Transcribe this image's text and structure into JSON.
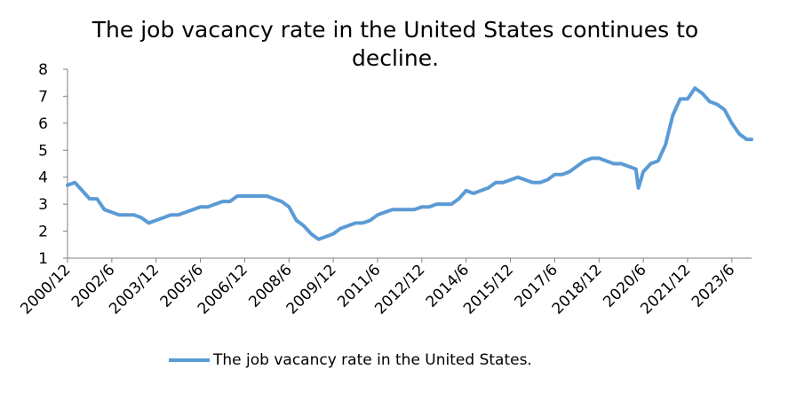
{
  "chart_data": {
    "type": "line",
    "title": "The job vacancy rate in the United States continues to decline.",
    "xlabel": "",
    "ylabel": "",
    "ylim": [
      1,
      8
    ],
    "y_ticks": [
      "1",
      "2",
      "3",
      "4",
      "5",
      "6",
      "7",
      "8"
    ],
    "x_tick_labels": [
      "2000/12",
      "2002/6",
      "2003/12",
      "2005/6",
      "2006/12",
      "2008/6",
      "2009/12",
      "2011/6",
      "2012/12",
      "2014/6",
      "2015/12",
      "2017/6",
      "2018/12",
      "2020/6",
      "2021/12",
      "2023/6"
    ],
    "x_range": [
      "2000/12",
      "2024/2"
    ],
    "grid": false,
    "legend_position": "bottom",
    "series": [
      {
        "name": "The job vacancy rate in the United States.",
        "color": "#5B9BD5",
        "x": [
          "2000/12",
          "2001/3",
          "2001/6",
          "2001/9",
          "2001/12",
          "2002/3",
          "2002/6",
          "2002/9",
          "2002/12",
          "2003/3",
          "2003/6",
          "2003/9",
          "2003/12",
          "2004/3",
          "2004/6",
          "2004/9",
          "2004/12",
          "2005/3",
          "2005/6",
          "2005/9",
          "2005/12",
          "2006/3",
          "2006/6",
          "2006/9",
          "2006/12",
          "2007/3",
          "2007/6",
          "2007/9",
          "2007/12",
          "2008/3",
          "2008/6",
          "2008/9",
          "2008/12",
          "2009/3",
          "2009/6",
          "2009/9",
          "2009/12",
          "2010/3",
          "2010/6",
          "2010/9",
          "2010/12",
          "2011/3",
          "2011/6",
          "2011/9",
          "2011/12",
          "2012/3",
          "2012/6",
          "2012/9",
          "2012/12",
          "2013/3",
          "2013/6",
          "2013/9",
          "2013/12",
          "2014/3",
          "2014/6",
          "2014/9",
          "2014/12",
          "2015/3",
          "2015/6",
          "2015/9",
          "2015/12",
          "2016/3",
          "2016/6",
          "2016/9",
          "2016/12",
          "2017/3",
          "2017/6",
          "2017/9",
          "2017/12",
          "2018/3",
          "2018/6",
          "2018/9",
          "2018/12",
          "2019/3",
          "2019/6",
          "2019/9",
          "2019/12",
          "2020/3",
          "2020/4",
          "2020/6",
          "2020/9",
          "2020/12",
          "2021/3",
          "2021/6",
          "2021/9",
          "2021/12",
          "2022/3",
          "2022/6",
          "2022/9",
          "2022/12",
          "2023/3",
          "2023/6",
          "2023/9",
          "2023/12",
          "2024/2"
        ],
        "values": [
          3.7,
          3.8,
          3.5,
          3.2,
          3.2,
          2.8,
          2.7,
          2.6,
          2.6,
          2.6,
          2.5,
          2.3,
          2.4,
          2.5,
          2.6,
          2.6,
          2.7,
          2.8,
          2.9,
          2.9,
          3.0,
          3.1,
          3.1,
          3.3,
          3.3,
          3.3,
          3.3,
          3.3,
          3.2,
          3.1,
          2.9,
          2.4,
          2.2,
          1.9,
          1.7,
          1.8,
          1.9,
          2.1,
          2.2,
          2.3,
          2.3,
          2.4,
          2.6,
          2.7,
          2.8,
          2.8,
          2.8,
          2.8,
          2.9,
          2.9,
          3.0,
          3.0,
          3.0,
          3.2,
          3.5,
          3.4,
          3.5,
          3.6,
          3.8,
          3.8,
          3.9,
          4.0,
          3.9,
          3.8,
          3.8,
          3.9,
          4.1,
          4.1,
          4.2,
          4.4,
          4.6,
          4.7,
          4.7,
          4.6,
          4.5,
          4.5,
          4.4,
          4.3,
          3.6,
          4.2,
          4.5,
          4.6,
          5.2,
          6.3,
          6.9,
          6.9,
          7.3,
          7.1,
          6.8,
          6.7,
          6.5,
          6.0,
          5.6,
          5.4,
          5.4
        ]
      }
    ]
  }
}
